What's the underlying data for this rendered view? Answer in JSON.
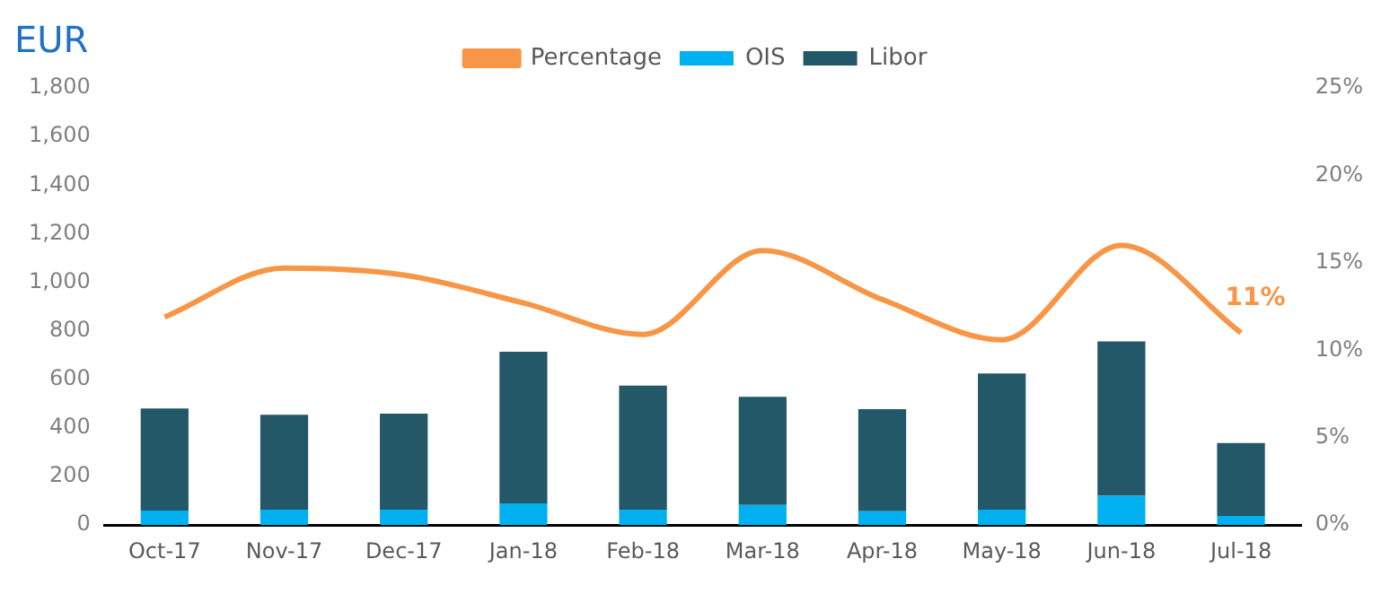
{
  "chart_data": {
    "type": "bar",
    "title": "EUR",
    "stacked": true,
    "legend": "top",
    "grid": false,
    "categories": [
      "Oct-17",
      "Nov-17",
      "Dec-17",
      "Jan-18",
      "Feb-18",
      "Mar-18",
      "Apr-18",
      "May-18",
      "Jun-18",
      "Jul-18"
    ],
    "series": [
      {
        "name": "OIS",
        "color": "#00b0f0",
        "values": [
          60,
          64,
          64,
          89,
          64,
          83,
          57,
          64,
          121,
          38
        ]
      },
      {
        "name": "Libor",
        "color": "#225868",
        "values": [
          420,
          390,
          395,
          625,
          510,
          445,
          420,
          560,
          635,
          300
        ]
      },
      {
        "name": "Percentage",
        "type": "line",
        "axis": "y2",
        "color": "#f79646",
        "marker": "none",
        "values": [
          11.9,
          14.7,
          14.3,
          12.7,
          10.9,
          15.7,
          12.9,
          10.6,
          16.0,
          11.0
        ],
        "value_labels": [
          null,
          null,
          null,
          null,
          null,
          null,
          null,
          null,
          null,
          "11%"
        ]
      }
    ],
    "ylim": [
      0,
      1800
    ],
    "yticks": [
      {
        "value": 0,
        "label": "0"
      },
      {
        "value": 200,
        "label": "200"
      },
      {
        "value": 400,
        "label": "400"
      },
      {
        "value": 600,
        "label": "600"
      },
      {
        "value": 800,
        "label": "800"
      },
      {
        "value": 1000,
        "label": "1,000"
      },
      {
        "value": 1200,
        "label": "1,200"
      },
      {
        "value": 1400,
        "label": "1,400"
      },
      {
        "value": 1600,
        "label": "1,600"
      },
      {
        "value": 1800,
        "label": "1,800"
      }
    ],
    "y2lim": [
      0,
      25
    ],
    "y2ticks": [
      {
        "value": 0,
        "label": "0%"
      },
      {
        "value": 5,
        "label": "5%"
      },
      {
        "value": 10,
        "label": "10%"
      },
      {
        "value": 15,
        "label": "15%"
      },
      {
        "value": 20,
        "label": "20%"
      },
      {
        "value": 25,
        "label": "25%"
      }
    ]
  }
}
